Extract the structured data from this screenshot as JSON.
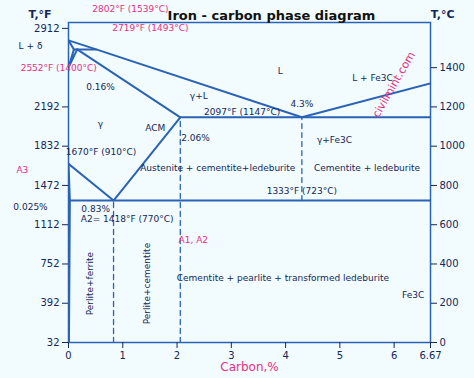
{
  "chart_data": {
    "type": "line",
    "title": "Iron - carbon phase diagram",
    "x_label": "Carbon,%",
    "y_label": "T,°F",
    "y2_label": "T,°C",
    "xlim": [
      0,
      6.67
    ],
    "xticks": [
      0,
      1,
      2,
      3,
      4,
      5,
      6,
      6.67
    ],
    "ylim": [
      32,
      2966
    ],
    "yticks": [
      32,
      392,
      752,
      1112,
      1472,
      1832,
      2192,
      2912
    ],
    "y2lim": [
      0,
      1630
    ],
    "y2ticks": [
      0,
      200,
      400,
      600,
      800,
      1000,
      1200,
      1400
    ],
    "grid": false,
    "color": "#2a63b5",
    "watermark": "civilmint.com",
    "series": [
      {
        "axis": "y2",
        "line_style": "solid",
        "x": [
          0,
          0.51,
          4.3,
          6.67
        ],
        "values": [
          1539,
          1493,
          1147,
          1320
        ]
      },
      {
        "axis": "y2",
        "line_style": "solid",
        "x": [
          0,
          0.1,
          0.51
        ],
        "values": [
          1539,
          1493,
          1493
        ]
      },
      {
        "axis": "y2",
        "line_style": "solid",
        "x": [
          0.1,
          0,
          0.16
        ],
        "values": [
          1493,
          1400,
          1493
        ]
      },
      {
        "axis": "y2",
        "line_style": "solid",
        "x": [
          0.16,
          2.06,
          6.67
        ],
        "values": [
          1493,
          1147,
          1147
        ]
      },
      {
        "axis": "y2",
        "line_style": "solid",
        "x": [
          0,
          0.83,
          2.06
        ],
        "values": [
          910,
          723,
          1147
        ]
      },
      {
        "axis": "y2",
        "line_style": "solid",
        "x": [
          0,
          0.025,
          0.008
        ],
        "values": [
          910,
          723,
          0
        ]
      },
      {
        "axis": "y2",
        "line_style": "solid",
        "x": [
          0.025,
          6.67
        ],
        "values": [
          723,
          723
        ]
      },
      {
        "axis": "y2",
        "line_style": "dashed",
        "x": [
          0.83,
          0.83
        ],
        "values": [
          0,
          723
        ]
      },
      {
        "axis": "y2",
        "line_style": "dashed",
        "x": [
          2.06,
          2.06
        ],
        "values": [
          0,
          1147
        ]
      },
      {
        "axis": "y2",
        "line_style": "dashed",
        "x": [
          4.3,
          4.3
        ],
        "values": [
          723,
          1147
        ]
      }
    ],
    "annotations": [
      {
        "text": "2802°F (1539°C)",
        "x": 1.14,
        "y": 1700
      },
      {
        "text": "2719°F (1493°C)",
        "x": 1.51,
        "y": 1600
      },
      {
        "text": "L + δ",
        "x": -0.7,
        "y": 1510
      },
      {
        "text": "2552°F (1400°C)",
        "x": -0.18,
        "y": 1400
      },
      {
        "text": "0.16%",
        "x": 0.59,
        "y": 1300
      },
      {
        "text": "γ",
        "x": 0.59,
        "y": 1110
      },
      {
        "text": "ACM",
        "x": 1.6,
        "y": 1090
      },
      {
        "text": "1670°F (910°C)",
        "x": 0.6,
        "y": 972
      },
      {
        "text": "A3",
        "x": -0.85,
        "y": 880
      },
      {
        "text": "0.025%",
        "x": -0.7,
        "y": 690
      },
      {
        "text": "L",
        "x": 3.9,
        "y": 1380
      },
      {
        "text": "γ+L",
        "x": 2.4,
        "y": 1255
      },
      {
        "text": "2097°F (1147°C)",
        "x": 3.2,
        "y": 1175
      },
      {
        "text": "4.3%",
        "x": 4.3,
        "y": 1215
      },
      {
        "text": "L + Fe3C",
        "x": 5.6,
        "y": 1345
      },
      {
        "text": "2.06%",
        "x": 2.34,
        "y": 1040
      },
      {
        "text": "γ+Fe3C",
        "x": 4.9,
        "y": 1030
      },
      {
        "text": "Austenite + cementite+ledeburite",
        "x": 2.75,
        "y": 890
      },
      {
        "text": "Cementite + ledeburite",
        "x": 5.5,
        "y": 890
      },
      {
        "text": "1333°F (723°C)",
        "x": 4.3,
        "y": 770
      },
      {
        "text": "0.83%",
        "x": 0.5,
        "y": 680
      },
      {
        "text": "A2= 1418°F (770°C)",
        "x": 1.08,
        "y": 628
      },
      {
        "text": "A1, A2",
        "x": 2.3,
        "y": 520
      },
      {
        "text": "Cementite + pearlite + transformed ledeburite",
        "x": 3.95,
        "y": 330
      },
      {
        "text": "Fe3C",
        "x": 6.35,
        "y": 240
      }
    ],
    "vertical_annotations": [
      {
        "text": "Perlite+ferrite",
        "x": 0.4,
        "y": 300
      },
      {
        "text": "Perlite+cementite",
        "x": 1.45,
        "y": 300
      }
    ]
  }
}
